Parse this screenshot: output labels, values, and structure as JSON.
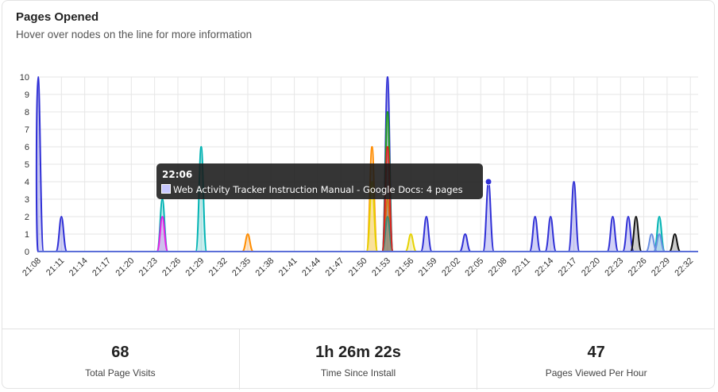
{
  "header": {
    "title": "Pages Opened",
    "subtitle": "Hover over nodes on the line for more information"
  },
  "tooltip": {
    "time": "22:06",
    "label": "Web Activity Tracker Instruction Manual - Google Docs: 4 pages",
    "swatch_color": "#c8c8ff"
  },
  "stats": [
    {
      "value": "68",
      "label": "Total Page Visits"
    },
    {
      "value": "1h 26m 22s",
      "label": "Time Since Install"
    },
    {
      "value": "47",
      "label": "Pages Viewed Per Hour"
    }
  ],
  "chart_data": {
    "type": "area",
    "title": "Pages Opened",
    "x_start": "21:08",
    "x_end": "22:33",
    "x_ticks": [
      "21:08",
      "21:11",
      "21:14",
      "21:17",
      "21:20",
      "21:23",
      "21:26",
      "21:29",
      "21:32",
      "21:35",
      "21:38",
      "21:41",
      "21:44",
      "21:47",
      "21:50",
      "21:53",
      "21:56",
      "21:59",
      "22:02",
      "22:05",
      "22:08",
      "22:11",
      "22:14",
      "22:17",
      "22:20",
      "22:23",
      "22:26",
      "22:29",
      "22:32"
    ],
    "y_ticks": [
      0,
      1,
      2,
      3,
      4,
      5,
      6,
      7,
      8,
      9,
      10
    ],
    "ylim": [
      0,
      10
    ],
    "grid": true,
    "legend": "none",
    "series": [
      {
        "color": "#2f2fd6",
        "points": [
          [
            "21:08",
            10
          ],
          [
            "21:11",
            2
          ],
          [
            "21:53",
            10
          ],
          [
            "21:58",
            2
          ],
          [
            "22:03",
            1
          ],
          [
            "22:06",
            4
          ],
          [
            "22:12",
            2
          ],
          [
            "22:14",
            2
          ],
          [
            "22:17",
            4
          ],
          [
            "22:22",
            2
          ],
          [
            "22:24",
            2
          ]
        ]
      },
      {
        "color": "#ff8c00",
        "points": [
          [
            "21:35",
            1
          ],
          [
            "21:51",
            6
          ],
          [
            "21:53",
            3
          ]
        ]
      },
      {
        "color": "#00b3b3",
        "points": [
          [
            "21:24",
            3
          ],
          [
            "21:29",
            6
          ],
          [
            "21:53",
            2
          ],
          [
            "22:28",
            2
          ]
        ]
      },
      {
        "color": "#e61ee6",
        "points": [
          [
            "21:24",
            2
          ]
        ]
      },
      {
        "color": "#1e9b1e",
        "points": [
          [
            "21:53",
            8
          ]
        ]
      },
      {
        "color": "#e32020",
        "points": [
          [
            "21:53",
            6
          ]
        ]
      },
      {
        "color": "#e6d200",
        "points": [
          [
            "21:51",
            4
          ],
          [
            "21:56",
            1
          ]
        ]
      },
      {
        "color": "#6a8fe0",
        "points": [
          [
            "22:27",
            1
          ],
          [
            "22:28",
            1
          ]
        ]
      },
      {
        "color": "#111111",
        "points": [
          [
            "22:25",
            2
          ],
          [
            "22:30",
            1
          ]
        ]
      }
    ],
    "hover_point": {
      "x": "22:06",
      "y": 4
    }
  }
}
